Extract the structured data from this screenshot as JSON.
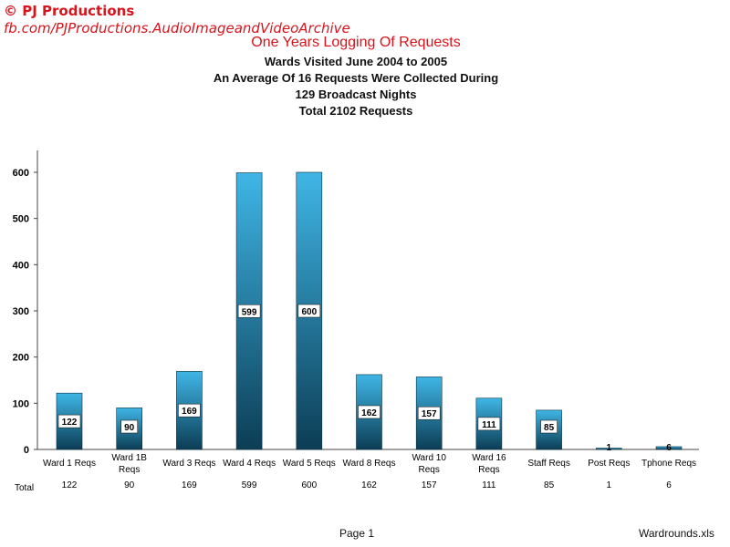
{
  "watermark": {
    "line1": "© PJ Productions",
    "line2": "fb.com/PJProductions.AudioImageandVideoArchive"
  },
  "chart_data": {
    "type": "bar",
    "title": "One Years Logging Of Requests",
    "subtitles": [
      "Wards Visited June 2004 to 2005",
      "An Average Of 16 Requests Were Collected During",
      "129 Broadcast Nights",
      "Total 2102 Requests"
    ],
    "categories": [
      [
        "Ward 1 Reqs"
      ],
      [
        "Ward 1B",
        "Reqs"
      ],
      [
        "Ward 3 Reqs"
      ],
      [
        "Ward 4 Reqs"
      ],
      [
        "Ward 5 Reqs"
      ],
      [
        "Ward 8 Reqs"
      ],
      [
        "Ward 10",
        "Reqs"
      ],
      [
        "Ward 16",
        "Reqs"
      ],
      [
        "Staff Reqs"
      ],
      [
        "Post Reqs"
      ],
      [
        "Tphone Reqs"
      ]
    ],
    "values": [
      122,
      90,
      169,
      599,
      600,
      162,
      157,
      111,
      85,
      1,
      6
    ],
    "yticks": [
      0,
      100,
      200,
      300,
      400,
      500,
      600
    ],
    "ylim": [
      0,
      650
    ],
    "table_row_label": "Total",
    "bar_color_top": "#3fb6e6",
    "bar_color_bottom": "#0c3d55"
  },
  "footer": {
    "page": "Page 1",
    "file": "Wardrounds.xls"
  }
}
